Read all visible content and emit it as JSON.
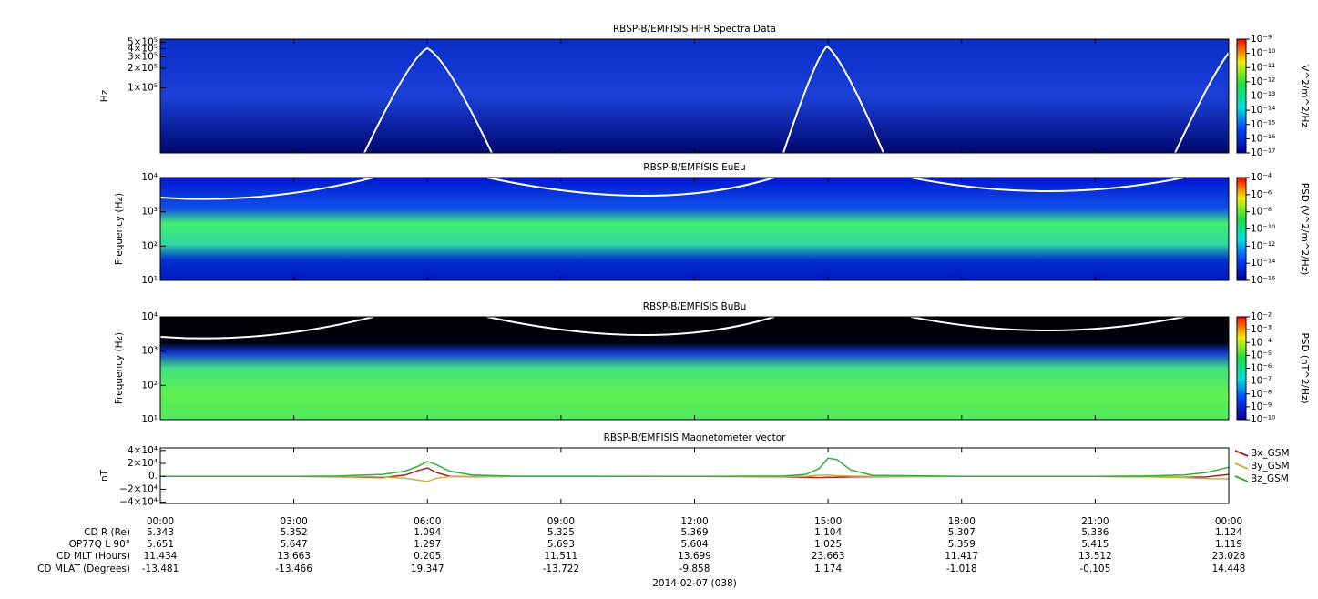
{
  "chart_data": [
    {
      "type": "spectrogram",
      "title": "RBSP-B/EMFISIS  HFR Spectra Data",
      "ylabel": "Hz",
      "log_scale": true,
      "ylim": [
        10000,
        560000
      ],
      "yticks": [
        {
          "value": 100000,
          "label": "1×10⁵"
        },
        {
          "value": 200000,
          "label": "2×10⁵"
        },
        {
          "value": 300000,
          "label": "3×10⁵"
        },
        {
          "value": 400000,
          "label": "4×10⁵"
        },
        {
          "value": 500000,
          "label": "5×10⁵"
        }
      ],
      "colorbar": {
        "label": "V^2/m^2/Hz",
        "lim": [
          1e-17,
          1e-09
        ],
        "ticks": [
          {
            "value": 1e-17,
            "label": "10⁻¹⁷"
          },
          {
            "value": 1e-16,
            "label": "10⁻¹⁶"
          },
          {
            "value": 1e-15,
            "label": "10⁻¹⁵"
          },
          {
            "value": 1e-14,
            "label": "10⁻¹⁴"
          },
          {
            "value": 1e-13,
            "label": "10⁻¹³"
          },
          {
            "value": 1e-12,
            "label": "10⁻¹²"
          },
          {
            "value": 1e-11,
            "label": "10⁻¹¹"
          },
          {
            "value": 1e-10,
            "label": "10⁻¹⁰"
          },
          {
            "value": 1e-09,
            "label": "10⁻⁹"
          }
        ]
      }
    },
    {
      "type": "spectrogram",
      "title": "RBSP-B/EMFISIS  EuEu",
      "ylabel": "Frequency (Hz)",
      "log_scale": true,
      "ylim": [
        10,
        10000
      ],
      "yticks": [
        {
          "value": 10,
          "label": "10¹"
        },
        {
          "value": 100,
          "label": "10²"
        },
        {
          "value": 1000,
          "label": "10³"
        },
        {
          "value": 10000,
          "label": "10⁴"
        }
      ],
      "colorbar": {
        "label": "PSD (V^2/m^2/Hz)",
        "lim": [
          1e-16,
          0.0001
        ],
        "ticks": [
          {
            "value": 1e-16,
            "label": "10⁻¹⁶"
          },
          {
            "value": 1e-14,
            "label": "10⁻¹⁴"
          },
          {
            "value": 1e-12,
            "label": "10⁻¹²"
          },
          {
            "value": 1e-10,
            "label": "10⁻¹⁰"
          },
          {
            "value": 1e-08,
            "label": "10⁻⁸"
          },
          {
            "value": 1e-06,
            "label": "10⁻⁶"
          },
          {
            "value": 0.0001,
            "label": "10⁻⁴"
          }
        ]
      }
    },
    {
      "type": "spectrogram",
      "title": "RBSP-B/EMFISIS  BuBu",
      "ylabel": "Frequency (Hz)",
      "log_scale": true,
      "ylim": [
        10,
        10000
      ],
      "yticks": [
        {
          "value": 10,
          "label": "10¹"
        },
        {
          "value": 100,
          "label": "10²"
        },
        {
          "value": 1000,
          "label": "10³"
        },
        {
          "value": 10000,
          "label": "10⁴"
        }
      ],
      "colorbar": {
        "label": "PSD (nT^2/Hz)",
        "lim": [
          1e-10,
          0.01
        ],
        "ticks": [
          {
            "value": 1e-10,
            "label": "10⁻¹⁰"
          },
          {
            "value": 1e-09,
            "label": "10⁻⁹"
          },
          {
            "value": 1e-08,
            "label": "10⁻⁸"
          },
          {
            "value": 1e-07,
            "label": "10⁻⁷"
          },
          {
            "value": 1e-06,
            "label": "10⁻⁶"
          },
          {
            "value": 1e-05,
            "label": "10⁻⁵"
          },
          {
            "value": 0.0001,
            "label": "10⁻⁴"
          },
          {
            "value": 0.001,
            "label": "10⁻³"
          },
          {
            "value": 0.01,
            "label": "10⁻²"
          }
        ]
      }
    },
    {
      "type": "line",
      "title": "RBSP-B/EMFISIS  Magnetometer vector",
      "ylabel": "nT",
      "xlim": [
        0,
        24
      ],
      "xticks": [
        {
          "value": 0,
          "label": "00:00"
        },
        {
          "value": 3,
          "label": "03:00"
        },
        {
          "value": 6,
          "label": "06:00"
        },
        {
          "value": 9,
          "label": "09:00"
        },
        {
          "value": 12,
          "label": "12:00"
        },
        {
          "value": 15,
          "label": "15:00"
        },
        {
          "value": 18,
          "label": "18:00"
        },
        {
          "value": 21,
          "label": "21:00"
        },
        {
          "value": 24,
          "label": "00:00"
        }
      ],
      "ylim": [
        -42000,
        44000
      ],
      "yticks": [
        {
          "value": -40000,
          "label": "−4×10⁴"
        },
        {
          "value": -20000,
          "label": "−2×10⁴"
        },
        {
          "value": 0,
          "label": "0."
        },
        {
          "value": 20000,
          "label": "2×10⁴"
        },
        {
          "value": 40000,
          "label": "4×10⁴"
        }
      ],
      "x": [
        0,
        3,
        4,
        5,
        5.5,
        5.8,
        6,
        6.2,
        6.5,
        7,
        8,
        12,
        14,
        14.5,
        14.8,
        15,
        15.2,
        15.5,
        16,
        18,
        21,
        22,
        23,
        23.5,
        24
      ],
      "series": [
        {
          "name": "Bx_GSM",
          "color": "#a02424",
          "values": [
            0,
            0,
            -500,
            -2000,
            2000,
            9000,
            13000,
            6000,
            0,
            -500,
            0,
            0,
            -500,
            -1500,
            -2000,
            -1500,
            -1500,
            -1000,
            -500,
            0,
            0,
            -500,
            -1500,
            -1000,
            3000
          ]
        },
        {
          "name": "By_GSM",
          "color": "#c8b040",
          "values": [
            0,
            0,
            -300,
            -1000,
            -3000,
            -6000,
            -8000,
            -3000,
            -500,
            -200,
            0,
            0,
            0,
            0,
            1500,
            2000,
            1000,
            300,
            0,
            0,
            0,
            -500,
            -2000,
            -3500,
            -4000
          ]
        },
        {
          "name": "Bz_GSM",
          "color": "#30b030",
          "values": [
            0,
            0,
            500,
            3000,
            8000,
            16000,
            23000,
            18000,
            8000,
            2000,
            200,
            0,
            500,
            3000,
            12000,
            28000,
            26000,
            10000,
            1500,
            0,
            0,
            500,
            2000,
            6000,
            14000
          ]
        }
      ]
    }
  ],
  "ephemeris": {
    "rows": [
      {
        "label": "CD R (Re)",
        "values": [
          5.343,
          5.352,
          1.094,
          5.325,
          5.369,
          1.104,
          5.307,
          5.386,
          1.124
        ]
      },
      {
        "label": "OP77Q L 90°",
        "values": [
          5.651,
          5.647,
          1.297,
          5.693,
          5.604,
          1.025,
          5.359,
          5.415,
          1.119
        ]
      },
      {
        "label": "CD MLT (Hours)",
        "values": [
          11.434,
          13.663,
          0.205,
          11.511,
          13.699,
          23.663,
          11.417,
          13.512,
          23.028
        ]
      },
      {
        "label": "CD MLAT (Degrees)",
        "values": [
          -13.481,
          -13.466,
          19.347,
          -13.722,
          -9.858,
          1.174,
          -1.018,
          -0.105,
          14.448
        ]
      }
    ],
    "date": "2014-02-07 (038)"
  }
}
